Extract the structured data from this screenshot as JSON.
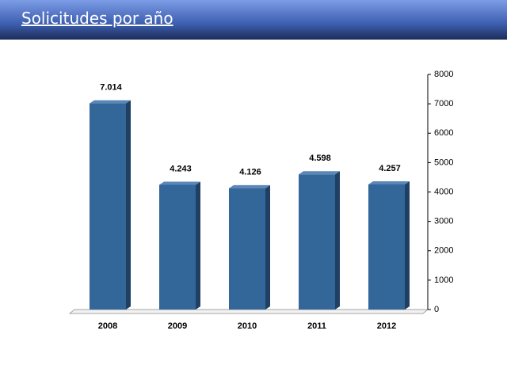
{
  "title": "Solicitudes por año",
  "chart_data": {
    "type": "bar",
    "categories": [
      "2008",
      "2009",
      "2010",
      "2011",
      "2012"
    ],
    "values": [
      7014,
      4243,
      4126,
      4598,
      4257
    ],
    "value_labels": [
      "7.014",
      "4.243",
      "4.126",
      "4.598",
      "4.257"
    ],
    "color": "#336699",
    "ylim": [
      0,
      8000
    ],
    "yticks": [
      0,
      1000,
      2000,
      3000,
      4000,
      5000,
      6000,
      7000,
      8000
    ],
    "y_axis_side": "right",
    "grid": false
  }
}
